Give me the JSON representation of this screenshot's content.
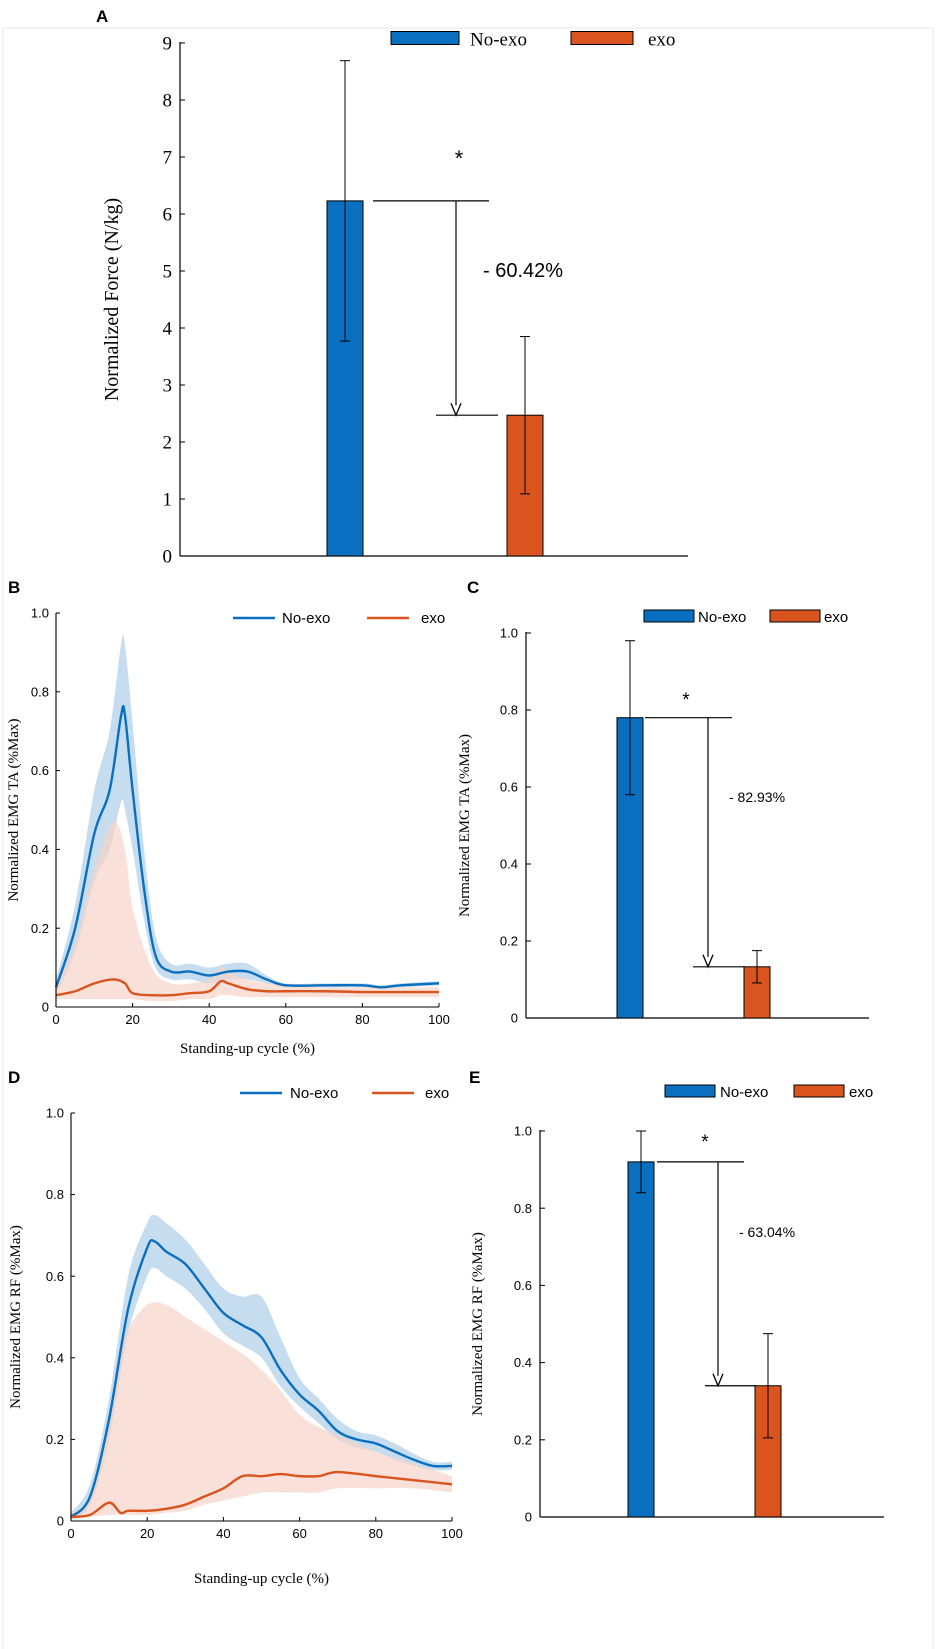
{
  "colors": {
    "no_exo": "#0b6fbf",
    "exo": "#d9541e",
    "no_exo_band": "#bcd7ec",
    "exo_band": "#f6d3c7",
    "axis": "#000000"
  },
  "chart_data": [
    {
      "panel": "A",
      "type": "bar",
      "categories": [
        "No-exo",
        "exo"
      ],
      "values": [
        6.23,
        2.47
      ],
      "errors": [
        2.46,
        1.38
      ],
      "ylabel": "Normalized Force (N/kg)",
      "xlabel": "",
      "ylim": [
        0,
        9
      ],
      "yticks": [
        "0",
        "1",
        "2",
        "3",
        "4",
        "5",
        "6",
        "7",
        "8",
        "9"
      ],
      "legend": [
        "No-exo",
        "exo"
      ],
      "annotation": {
        "star": "*",
        "text": "- 60.42%"
      }
    },
    {
      "panel": "B",
      "type": "line",
      "xlabel": "Standing-up cycle (%)",
      "ylabel": "Normalized EMG TA (%Max)",
      "xlim": [
        0,
        100
      ],
      "ylim": [
        0,
        1
      ],
      "xticks": [
        "0",
        "20",
        "40",
        "60",
        "80",
        "100"
      ],
      "yticks": [
        "0",
        "0.2",
        "0.4",
        "0.6",
        "0.8",
        "1.0"
      ],
      "legend": [
        "No-exo",
        "exo"
      ],
      "series": [
        {
          "name": "No-exo",
          "x": [
            0,
            5,
            10,
            14,
            17,
            18,
            20,
            23,
            26,
            30,
            35,
            40,
            45,
            50,
            55,
            60,
            70,
            80,
            85,
            90,
            100
          ],
          "y": [
            0.05,
            0.2,
            0.44,
            0.55,
            0.74,
            0.74,
            0.55,
            0.3,
            0.13,
            0.09,
            0.09,
            0.08,
            0.09,
            0.09,
            0.07,
            0.055,
            0.055,
            0.055,
            0.05,
            0.055,
            0.06
          ],
          "lower": [
            0.03,
            0.14,
            0.32,
            0.4,
            0.52,
            0.5,
            0.4,
            0.22,
            0.1,
            0.07,
            0.07,
            0.06,
            0.07,
            0.07,
            0.06,
            0.05,
            0.05,
            0.05,
            0.045,
            0.05,
            0.055
          ],
          "upper": [
            0.07,
            0.26,
            0.55,
            0.7,
            0.92,
            0.92,
            0.72,
            0.4,
            0.18,
            0.11,
            0.11,
            0.1,
            0.11,
            0.11,
            0.08,
            0.06,
            0.06,
            0.06,
            0.055,
            0.06,
            0.065
          ]
        },
        {
          "name": "exo",
          "x": [
            0,
            5,
            10,
            15,
            18,
            20,
            25,
            30,
            35,
            40,
            43,
            45,
            50,
            55,
            60,
            70,
            80,
            90,
            100
          ],
          "y": [
            0.03,
            0.04,
            0.06,
            0.07,
            0.06,
            0.035,
            0.03,
            0.03,
            0.035,
            0.04,
            0.065,
            0.06,
            0.045,
            0.04,
            0.04,
            0.04,
            0.038,
            0.038,
            0.038
          ],
          "lower": [
            0.02,
            0.02,
            0.02,
            0.02,
            0.02,
            0.02,
            0.015,
            0.015,
            0.02,
            0.02,
            0.03,
            0.03,
            0.025,
            0.025,
            0.025,
            0.025,
            0.025,
            0.025,
            0.025
          ],
          "upper": [
            0.06,
            0.16,
            0.35,
            0.47,
            0.4,
            0.25,
            0.1,
            0.06,
            0.06,
            0.07,
            0.1,
            0.09,
            0.07,
            0.06,
            0.055,
            0.05,
            0.05,
            0.05,
            0.05
          ]
        }
      ]
    },
    {
      "panel": "C",
      "type": "bar",
      "categories": [
        "No-exo",
        "exo"
      ],
      "values": [
        0.78,
        0.133
      ],
      "errors": [
        0.2,
        0.042
      ],
      "ylabel": "Normalized EMG TA (%Max)",
      "xlabel": "",
      "ylim": [
        0,
        1
      ],
      "yticks": [
        "0",
        "0.2",
        "0.4",
        "0.6",
        "0.8",
        "1.0"
      ],
      "legend": [
        "No-exo",
        "exo"
      ],
      "annotation": {
        "star": "*",
        "text": "- 82.93%"
      }
    },
    {
      "panel": "D",
      "type": "line",
      "xlabel": "Standing-up cycle (%)",
      "ylabel": "Normalized EMG RF (%Max)",
      "xlim": [
        0,
        100
      ],
      "ylim": [
        0,
        1
      ],
      "xticks": [
        "0",
        "20",
        "40",
        "60",
        "80",
        "100"
      ],
      "yticks": [
        "0",
        "0.2",
        "0.4",
        "0.6",
        "0.8",
        "1.0"
      ],
      "legend": [
        "No-exo",
        "exo"
      ],
      "series": [
        {
          "name": "No-exo",
          "x": [
            0,
            5,
            10,
            15,
            20,
            22,
            25,
            30,
            35,
            40,
            45,
            50,
            55,
            60,
            65,
            70,
            75,
            80,
            85,
            90,
            95,
            100
          ],
          "y": [
            0.01,
            0.06,
            0.25,
            0.52,
            0.67,
            0.685,
            0.66,
            0.63,
            0.57,
            0.51,
            0.48,
            0.45,
            0.37,
            0.31,
            0.27,
            0.22,
            0.2,
            0.19,
            0.17,
            0.15,
            0.135,
            0.135
          ],
          "lower": [
            0.005,
            0.04,
            0.2,
            0.46,
            0.6,
            0.62,
            0.6,
            0.57,
            0.52,
            0.46,
            0.43,
            0.4,
            0.33,
            0.28,
            0.24,
            0.2,
            0.18,
            0.17,
            0.15,
            0.135,
            0.125,
            0.125
          ],
          "upper": [
            0.02,
            0.09,
            0.3,
            0.6,
            0.73,
            0.75,
            0.73,
            0.69,
            0.63,
            0.57,
            0.55,
            0.55,
            0.45,
            0.35,
            0.3,
            0.25,
            0.22,
            0.21,
            0.19,
            0.165,
            0.145,
            0.145
          ]
        },
        {
          "name": "exo",
          "x": [
            0,
            5,
            10,
            13,
            15,
            20,
            25,
            30,
            35,
            40,
            45,
            50,
            55,
            60,
            65,
            70,
            80,
            90,
            100
          ],
          "y": [
            0.01,
            0.015,
            0.045,
            0.02,
            0.025,
            0.025,
            0.03,
            0.04,
            0.06,
            0.08,
            0.11,
            0.11,
            0.115,
            0.11,
            0.11,
            0.12,
            0.11,
            0.1,
            0.09
          ],
          "lower": [
            0.005,
            0.01,
            0.015,
            0.015,
            0.015,
            0.015,
            0.02,
            0.025,
            0.04,
            0.05,
            0.06,
            0.07,
            0.07,
            0.07,
            0.07,
            0.08,
            0.08,
            0.08,
            0.07
          ],
          "upper": [
            0.02,
            0.06,
            0.25,
            0.4,
            0.47,
            0.53,
            0.53,
            0.5,
            0.47,
            0.44,
            0.41,
            0.37,
            0.32,
            0.26,
            0.23,
            0.21,
            0.17,
            0.14,
            0.11
          ]
        }
      ]
    },
    {
      "panel": "E",
      "type": "bar",
      "categories": [
        "No-exo",
        "exo"
      ],
      "values": [
        0.92,
        0.34
      ],
      "errors": [
        0.08,
        0.135
      ],
      "ylabel": "Normalized EMG RF (%Max)",
      "xlabel": "",
      "ylim": [
        0,
        1
      ],
      "yticks": [
        "0",
        "0.2",
        "0.4",
        "0.6",
        "0.8",
        "1.0"
      ],
      "legend": [
        "No-exo",
        "exo"
      ],
      "annotation": {
        "star": "*",
        "text": "- 63.04%"
      }
    }
  ]
}
